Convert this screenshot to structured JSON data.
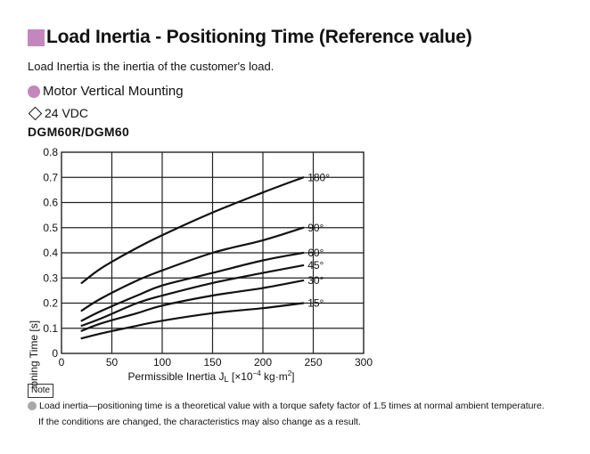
{
  "header": {
    "title": "Load Inertia - Positioning Time (Reference value)",
    "description": "Load Inertia is the inertia of the customer's load.",
    "section": "Motor Vertical Mounting",
    "voltage": "24 VDC",
    "model": "DGM60R/DGM60"
  },
  "colors": {
    "accent": "#c387bd",
    "bullet_gray": "#a8a8a8"
  },
  "chart_data": {
    "type": "line",
    "title": "",
    "xlabel": "Permissible Inertia J",
    "xlabel_subscript": "L",
    "xlabel_unit_prefix": " [×10",
    "xlabel_exponent": "−4",
    "xlabel_unit_suffix": " kg·m",
    "xlabel_unit_power": "2",
    "xlabel_close": "]",
    "ylabel": "Positioning Time [s]",
    "xlim": [
      0,
      300
    ],
    "ylim": [
      0,
      0.8
    ],
    "x_ticks": [
      "0",
      "50",
      "100",
      "150",
      "200",
      "250",
      "300"
    ],
    "y_ticks": [
      "0",
      "0.1",
      "0.2",
      "0.3",
      "0.4",
      "0.5",
      "0.6",
      "0.7",
      "0.8"
    ],
    "grid": true,
    "series": [
      {
        "name": "180°",
        "x": [
          20,
          40,
          75,
          100,
          150,
          200,
          240
        ],
        "y": [
          0.28,
          0.34,
          0.42,
          0.47,
          0.56,
          0.64,
          0.7
        ]
      },
      {
        "name": "90°",
        "x": [
          20,
          40,
          75,
          100,
          150,
          200,
          240
        ],
        "y": [
          0.17,
          0.22,
          0.29,
          0.33,
          0.4,
          0.45,
          0.5
        ]
      },
      {
        "name": "60°",
        "x": [
          20,
          40,
          75,
          100,
          150,
          200,
          240
        ],
        "y": [
          0.13,
          0.17,
          0.23,
          0.27,
          0.32,
          0.37,
          0.4
        ]
      },
      {
        "name": "45°",
        "x": [
          20,
          40,
          75,
          100,
          150,
          200,
          240
        ],
        "y": [
          0.11,
          0.14,
          0.2,
          0.23,
          0.28,
          0.32,
          0.35
        ]
      },
      {
        "name": "30°",
        "x": [
          20,
          40,
          75,
          100,
          150,
          200,
          240
        ],
        "y": [
          0.09,
          0.12,
          0.16,
          0.19,
          0.23,
          0.26,
          0.29
        ]
      },
      {
        "name": "15°",
        "x": [
          20,
          40,
          75,
          100,
          150,
          200,
          240
        ],
        "y": [
          0.06,
          0.08,
          0.11,
          0.13,
          0.16,
          0.18,
          0.2
        ]
      }
    ]
  },
  "note": {
    "label": "Note",
    "line1": "Load inertia—positioning time is a theoretical value with a torque safety factor of 1.5 times at normal ambient temperature.",
    "line2": "If the conditions are changed, the characteristics may also change as a result."
  }
}
